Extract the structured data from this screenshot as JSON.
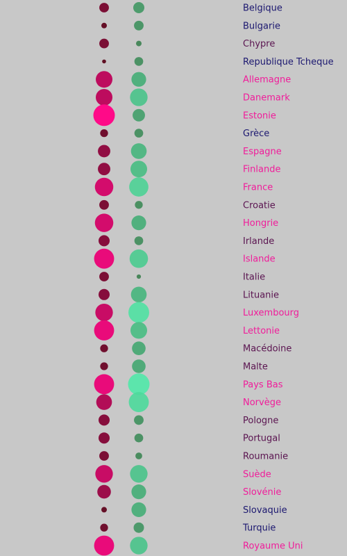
{
  "chart_data": {
    "type": "scatter",
    "categories": [
      "Belgique",
      "Bulgarie",
      "Chypre",
      "Republique Tcheque",
      "Allemagne",
      "Danemark",
      "Estonie",
      "Grèce",
      "Espagne",
      "Finlande",
      "France",
      "Croatie",
      "Hongrie",
      "Irlande",
      "Islande",
      "Italie",
      "Lituanie",
      "Luxembourg",
      "Lettonie",
      "Macédoine",
      "Malte",
      "Pays Bas",
      "Norvège",
      "Pologne",
      "Portugal",
      "Roumanie",
      "Suède",
      "Slovénie",
      "Slovaquie",
      "Turquie",
      "Royaume Uni"
    ],
    "series": [
      {
        "values": [
          3,
          1,
          3,
          0.5,
          9,
          9,
          15,
          2,
          5,
          5,
          11,
          3,
          11,
          4,
          13,
          3,
          4,
          10,
          13,
          2,
          2,
          13,
          8,
          4,
          4,
          3,
          10,
          6,
          1,
          2,
          13
        ]
      },
      {
        "values": [
          4,
          3,
          1,
          2.5,
          7,
          10,
          5,
          2.5,
          8,
          9,
          12,
          2,
          7,
          2.5,
          11,
          0.6,
          8,
          14,
          9,
          6,
          6,
          15,
          13,
          3,
          2.5,
          1.5,
          10,
          7,
          7,
          3.5,
          10
        ]
      }
    ],
    "label_colors": [
      "#1c1870",
      "#1c1870",
      "#5a1450",
      "#1c1870",
      "#f01c9a",
      "#f01c9a",
      "#f01c9a",
      "#1c1870",
      "#f01c9a",
      "#f01c9a",
      "#f01c9a",
      "#5a1450",
      "#f01c9a",
      "#5a1450",
      "#f01c9a",
      "#5a1450",
      "#5a1450",
      "#f01c9a",
      "#f01c9a",
      "#5a1450",
      "#5a1450",
      "#f01c9a",
      "#f01c9a",
      "#5a1450",
      "#5a1450",
      "#5a1450",
      "#f01c9a",
      "#f01c9a",
      "#1c1870",
      "#1c1870",
      "#f01c9a"
    ],
    "colors": {
      "series1_low": "#5a1020",
      "series1_high": "#ff0a88",
      "series2_low": "#3a7a4a",
      "series2_high": "#50e8a8"
    }
  }
}
